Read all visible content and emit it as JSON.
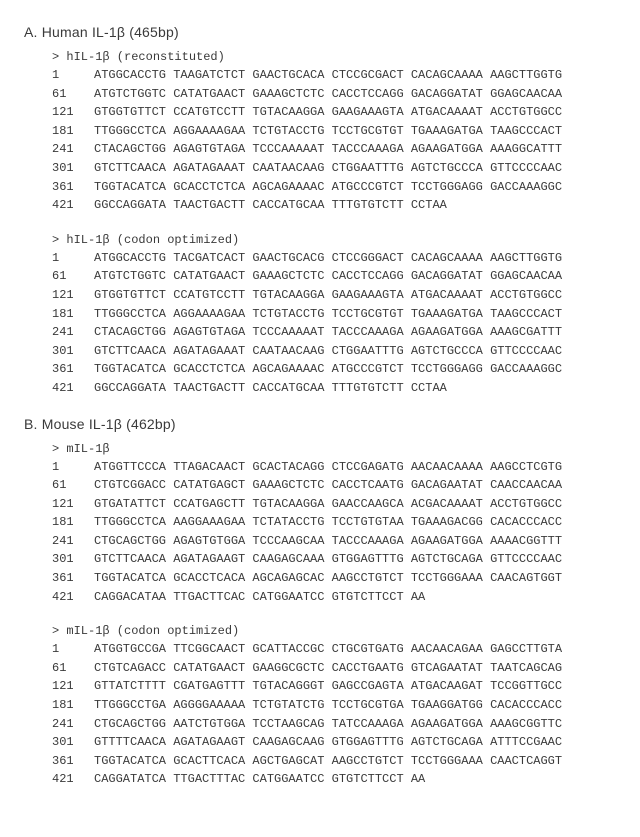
{
  "sections": [
    {
      "title": "A. Human IL-1β (465bp)",
      "blocks": [
        {
          "name": "> hIL-1β (reconstituted)",
          "rows": [
            {
              "pos": "1",
              "seq": "ATGGCACCTG TAAGATCTCT GAACTGCACA CTCCGCGACT CACAGCAAAA AAGCTTGGTG"
            },
            {
              "pos": "61",
              "seq": "ATGTCTGGTC CATATGAACT GAAAGCTCTC CACCTCCAGG GACAGGATAT GGAGCAACAA"
            },
            {
              "pos": "121",
              "seq": "GTGGTGTTCT CCATGTCCTT TGTACAAGGA GAAGAAAGTA ATGACAAAAT ACCTGTGGCC"
            },
            {
              "pos": "181",
              "seq": "TTGGGCCTCA AGGAAAAGAA TCTGTACCTG TCCTGCGTGT TGAAAGATGA TAAGCCCACT"
            },
            {
              "pos": "241",
              "seq": "CTACAGCTGG AGAGTGTAGA TCCCAAAAAT TACCCAAAGA AGAAGATGGA AAAGGCATTT"
            },
            {
              "pos": "301",
              "seq": "GTCTTCAACA AGATAGAAAT CAATAACAAG CTGGAATTTG AGTCTGCCCA GTTCCCCAAC"
            },
            {
              "pos": "361",
              "seq": "TGGTACATCA GCACCTCTCA AGCAGAAAAC ATGCCCGTCT TCCTGGGAGG GACCAAAGGC"
            },
            {
              "pos": "421",
              "seq": "GGCCAGGATA TAACTGACTT CACCATGCAA TTTGTGTCTT CCTAA"
            }
          ]
        },
        {
          "name": "> hIL-1β (codon optimized)",
          "rows": [
            {
              "pos": "1",
              "seq": "ATGGCACCTG TACGATCACT GAACTGCACG CTCCGGGACT CACAGCAAAA AAGCTTGGTG"
            },
            {
              "pos": "61",
              "seq": "ATGTCTGGTC CATATGAACT GAAAGCTCTC CACCTCCAGG GACAGGATAT GGAGCAACAA"
            },
            {
              "pos": "121",
              "seq": "GTGGTGTTCT CCATGTCCTT TGTACAAGGA GAAGAAAGTA ATGACAAAAT ACCTGTGGCC"
            },
            {
              "pos": "181",
              "seq": "TTGGGCCTCA AGGAAAAGAA TCTGTACCTG TCCTGCGTGT TGAAAGATGA TAAGCCCACT"
            },
            {
              "pos": "241",
              "seq": "CTACAGCTGG AGAGTGTAGA TCCCAAAAAT TACCCAAAGA AGAAGATGGA AAAGCGATTT"
            },
            {
              "pos": "301",
              "seq": "GTCTTCAACA AGATAGAAAT CAATAACAAG CTGGAATTTG AGTCTGCCCA GTTCCCCAAC"
            },
            {
              "pos": "361",
              "seq": "TGGTACATCA GCACCTCTCA AGCAGAAAAC ATGCCCGTCT TCCTGGGAGG GACCAAAGGC"
            },
            {
              "pos": "421",
              "seq": "GGCCAGGATA TAACTGACTT CACCATGCAA TTTGTGTCTT CCTAA"
            }
          ]
        }
      ]
    },
    {
      "title": "B. Mouse IL-1β (462bp)",
      "blocks": [
        {
          "name": "> mIL-1β",
          "rows": [
            {
              "pos": "1",
              "seq": "ATGGTTCCCA TTAGACAACT GCACTACAGG CTCCGAGATG AACAACAAAA AAGCCTCGTG"
            },
            {
              "pos": "61",
              "seq": "CTGTCGGACC CATATGAGCT GAAAGCTCTC CACCTCAATG GACAGAATAT CAACCAACAA"
            },
            {
              "pos": "121",
              "seq": "GTGATATTCT CCATGAGCTT TGTACAAGGA GAACCAAGCA ACGACAAAAT ACCTGTGGCC"
            },
            {
              "pos": "181",
              "seq": "TTGGGCCTCA AAGGAAAGAA TCTATACCTG TCCTGTGTAA TGAAAGACGG CACACCCACC"
            },
            {
              "pos": "241",
              "seq": "CTGCAGCTGG AGAGTGTGGA TCCCAAGCAA TACCCAAAGA AGAAGATGGA AAAACGGTTT"
            },
            {
              "pos": "301",
              "seq": "GTCTTCAACA AGATAGAAGT CAAGAGCAAA GTGGAGTTTG AGTCTGCAGA GTTCCCCAAC"
            },
            {
              "pos": "361",
              "seq": "TGGTACATCA GCACCTCACA AGCAGAGCAC AAGCCTGTCT TCCTGGGAAA CAACAGTGGT"
            },
            {
              "pos": "421",
              "seq": "CAGGACATAA TTGACTTCAC CATGGAATCC GTGTCTTCCT AA"
            }
          ]
        },
        {
          "name": "> mIL-1β (codon optimized)",
          "rows": [
            {
              "pos": "1",
              "seq": "ATGGTGCCGA TTCGGCAACT GCATTACCGC CTGCGTGATG AACAACAGAA GAGCCTTGTA"
            },
            {
              "pos": "61",
              "seq": "CTGTCAGACC CATATGAACT GAAGGCGCTC CACCTGAATG GTCAGAATAT TAATCAGCAG"
            },
            {
              "pos": "121",
              "seq": "GTTATCTTTT CGATGAGTTT TGTACAGGGT GAGCCGAGTA ATGACAAGAT TCCGGTTGCC"
            },
            {
              "pos": "181",
              "seq": "TTGGGCCTGA AGGGGAAAAA TCTGTATCTG TCCTGCGTGA TGAAGGATGG CACACCCACC"
            },
            {
              "pos": "241",
              "seq": "CTGCAGCTGG AATCTGTGGA TCCTAAGCAG TATCCAAAGA AGAAGATGGA AAAGCGGTTC"
            },
            {
              "pos": "301",
              "seq": "GTTTTCAACA AGATAGAAGT CAAGAGCAAG GTGGAGTTTG AGTCTGCAGA ATTTCCGAAC"
            },
            {
              "pos": "361",
              "seq": "TGGTACATCA GCACTTCACA AGCTGAGCAT AAGCCTGTCT TCCTGGGAAA CAACTCAGGT"
            },
            {
              "pos": "421",
              "seq": "CAGGATATCA TTGACTTTAC CATGGAATCC GTGTCTTCCT AA"
            }
          ]
        }
      ]
    }
  ]
}
